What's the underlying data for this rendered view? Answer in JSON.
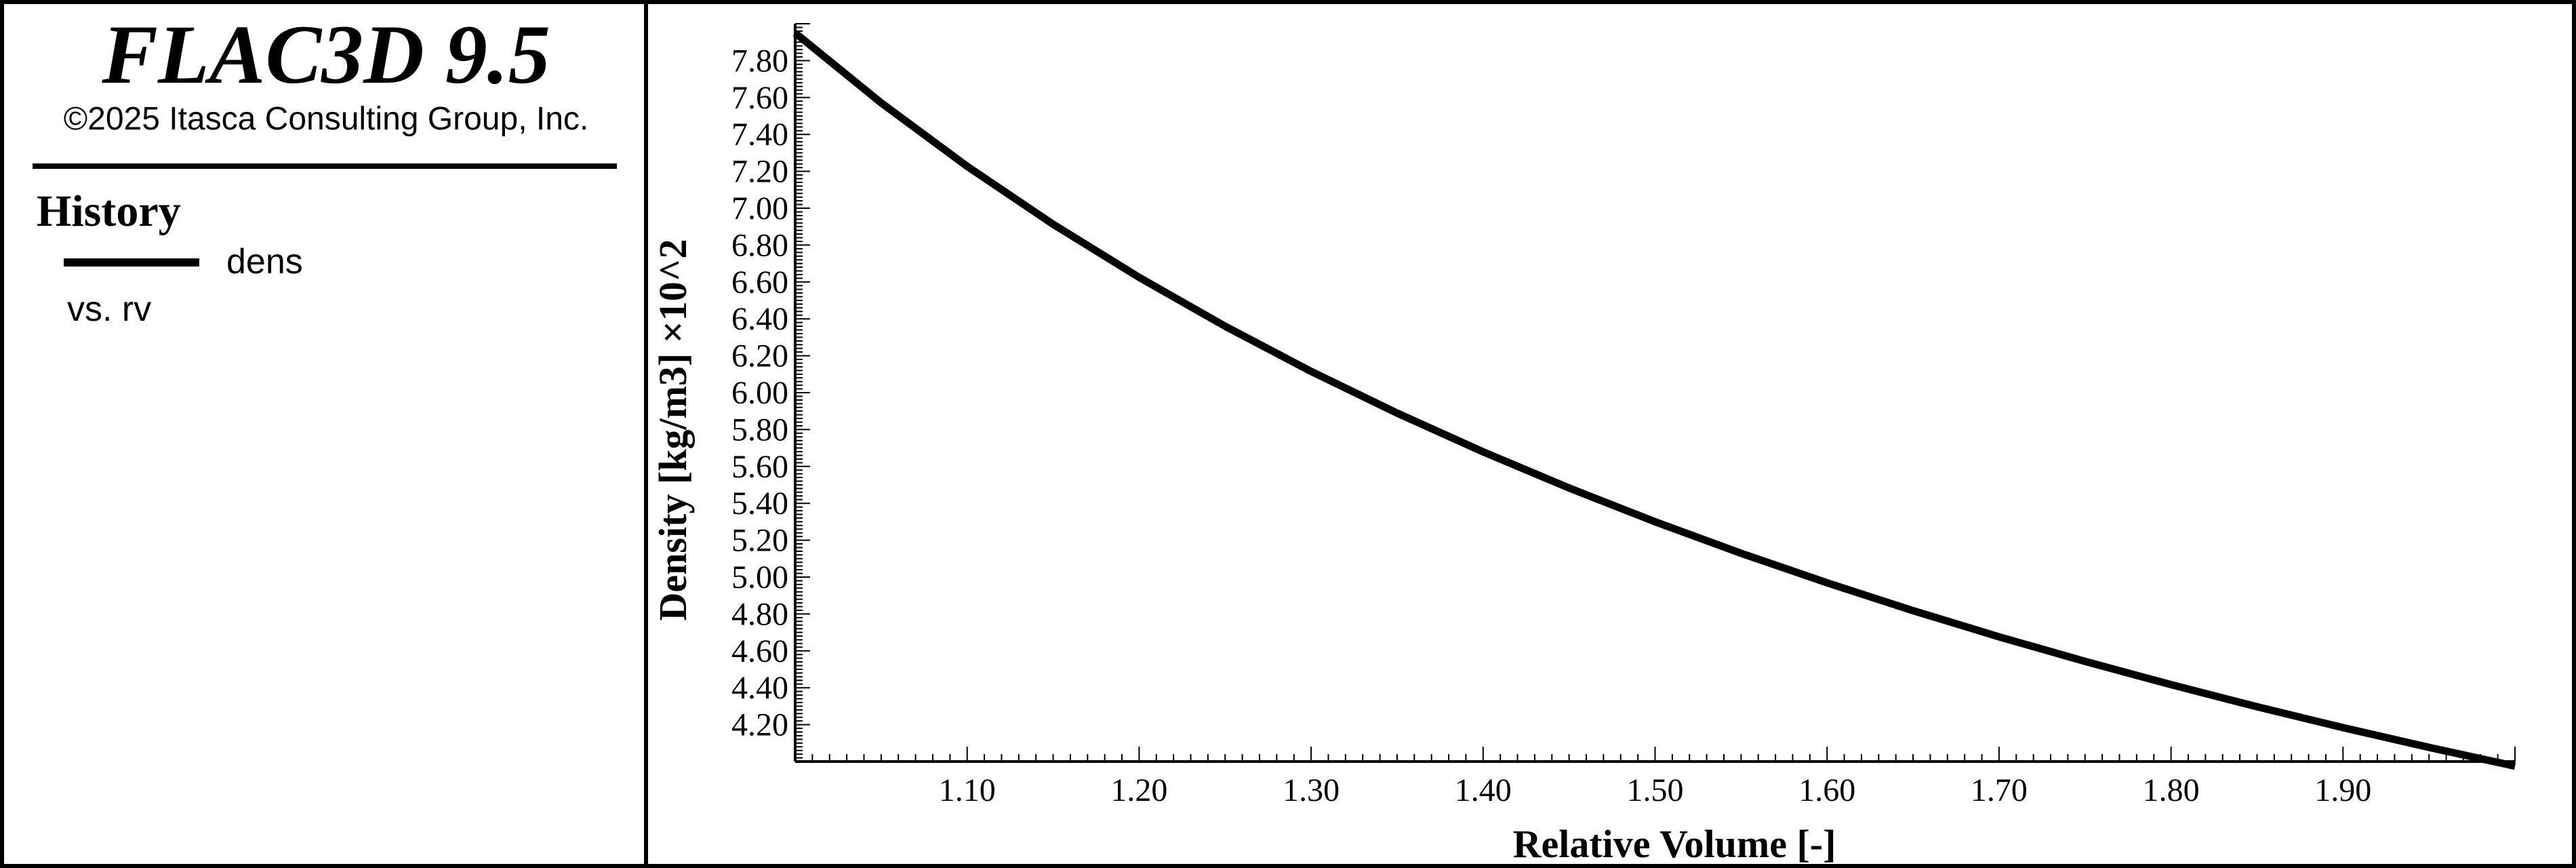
{
  "header": {
    "app_title": "FLAC3D 9.5",
    "copyright": "©2025 Itasca Consulting Group, Inc."
  },
  "legend": {
    "heading": "History",
    "series_label": "dens",
    "vs_label": "vs. rv"
  },
  "chart_data": {
    "type": "line",
    "xlabel": "Relative Volume [-]",
    "ylabel": "Density [kg/m3] ×10^2",
    "xlim": [
      1.0,
      2.0
    ],
    "ylim": [
      4.0,
      8.0
    ],
    "x_ticks": [
      "1.10",
      "1.20",
      "1.30",
      "1.40",
      "1.50",
      "1.60",
      "1.70",
      "1.80",
      "1.90"
    ],
    "y_ticks": [
      "4.20",
      "4.40",
      "4.60",
      "4.80",
      "5.00",
      "5.20",
      "5.40",
      "5.60",
      "5.80",
      "6.00",
      "6.20",
      "6.40",
      "6.60",
      "6.80",
      "7.00",
      "7.20",
      "7.40",
      "7.60",
      "7.80"
    ],
    "grid": false,
    "series": [
      {
        "name": "dens",
        "color": "#000000",
        "x": [
          1.0,
          1.05,
          1.1,
          1.15,
          1.2,
          1.25,
          1.3,
          1.35,
          1.4,
          1.45,
          1.5,
          1.55,
          1.6,
          1.65,
          1.7,
          1.75,
          1.8,
          1.85,
          1.9,
          1.95,
          2.0
        ],
        "y": [
          7.95,
          7.571,
          7.227,
          6.913,
          6.625,
          6.36,
          6.115,
          5.889,
          5.679,
          5.483,
          5.3,
          5.129,
          4.969,
          4.818,
          4.676,
          4.543,
          4.417,
          4.297,
          4.184,
          4.077,
          3.975
        ]
      }
    ]
  }
}
